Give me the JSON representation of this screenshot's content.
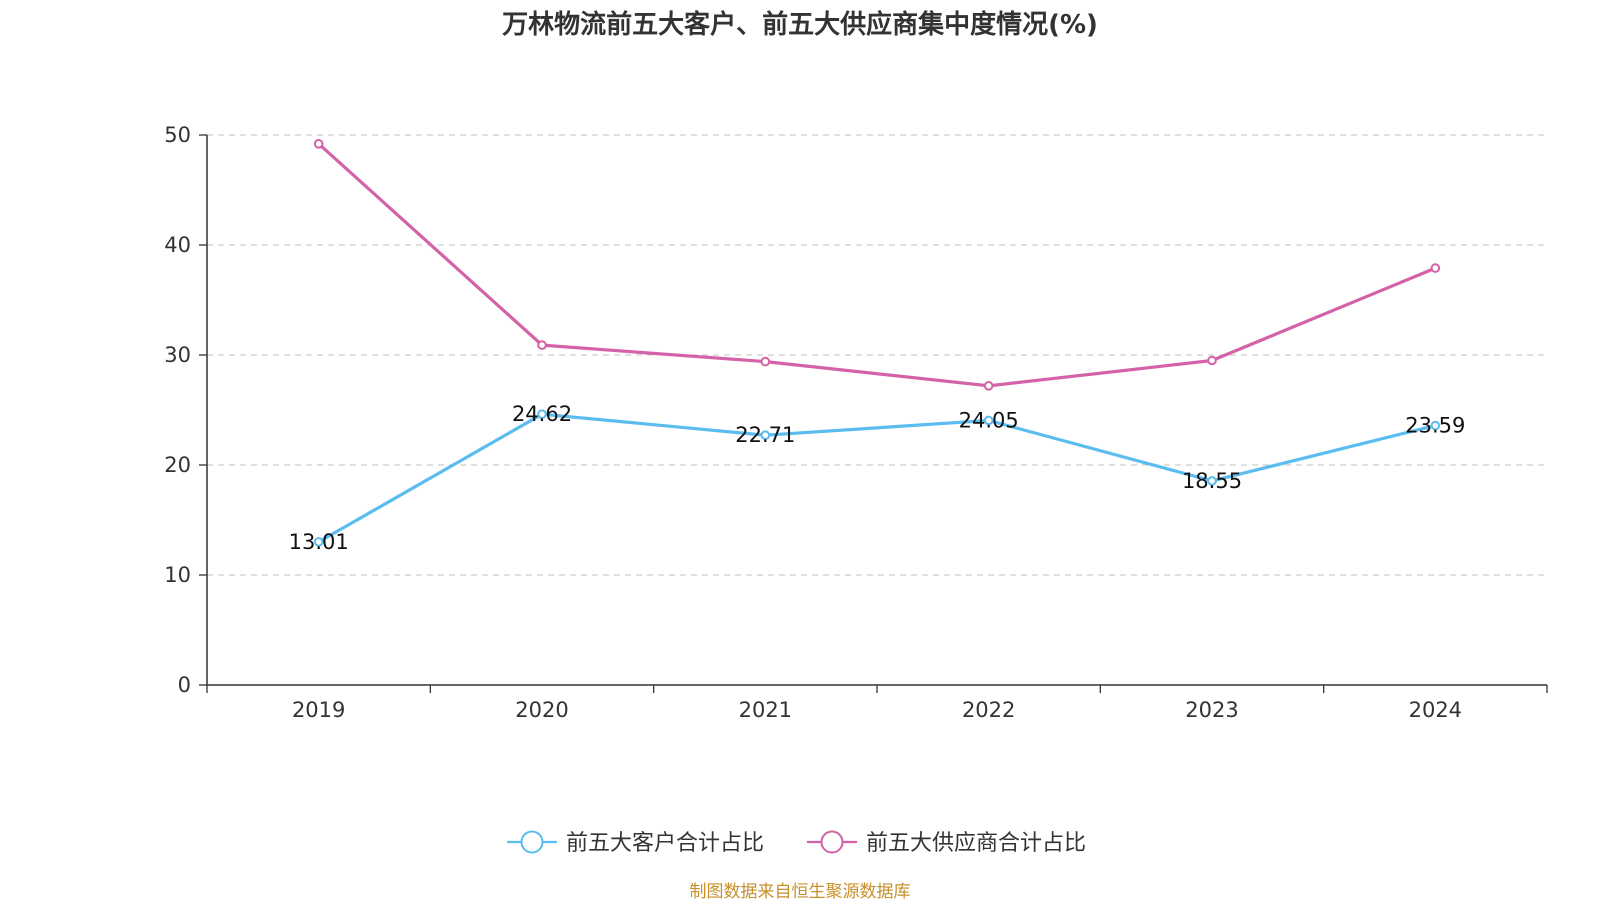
{
  "chart_data": {
    "type": "line",
    "title": "万林物流前五大客户、前五大供应商集中度情况(%)",
    "categories": [
      "2019",
      "2020",
      "2021",
      "2022",
      "2023",
      "2024"
    ],
    "ylim": [
      0,
      50
    ],
    "yticks": [
      "0",
      "10",
      "20",
      "30",
      "40",
      "50"
    ],
    "grid": true,
    "legend_position": "bottom",
    "series": [
      {
        "name": "前五大客户合计占比",
        "color": "#5bbcef",
        "values": [
          13.01,
          24.62,
          22.71,
          24.05,
          18.55,
          23.59
        ],
        "labels": [
          "13.01",
          "24.62",
          "22.71",
          "24.05",
          "18.55",
          "23.59"
        ]
      },
      {
        "name": "前五大供应商合计占比",
        "color": "#d462a8",
        "values": [
          49.2,
          30.9,
          29.4,
          27.2,
          29.5,
          37.9
        ],
        "labels": []
      }
    ]
  },
  "source": {
    "text": "制图数据来自恒生聚源数据库",
    "color": "#c8902a"
  }
}
